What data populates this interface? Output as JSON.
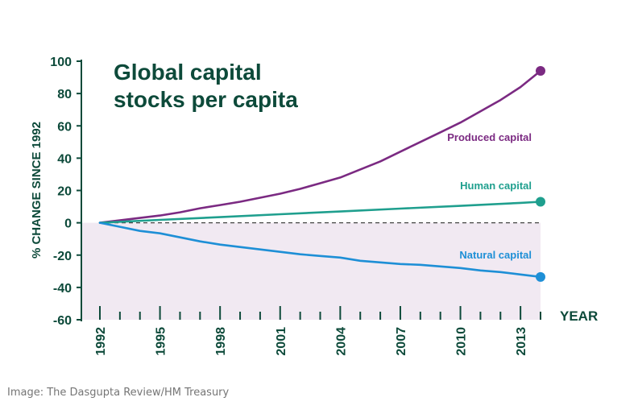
{
  "chart_data": {
    "type": "line",
    "title_lines": [
      "Global capital",
      "stocks per capita"
    ],
    "ylabel": "% CHANGE SINCE 1992",
    "xlabel": "YEAR",
    "xlim": [
      1992,
      2014
    ],
    "ylim": [
      -60,
      100
    ],
    "x_ticks": [
      1992,
      1995,
      1998,
      2001,
      2004,
      2007,
      2010,
      2013
    ],
    "y_ticks": [
      100,
      80,
      60,
      40,
      20,
      0,
      -20,
      -40,
      -60
    ],
    "baseline": 0,
    "grid": false,
    "series": [
      {
        "name": "Produced capital",
        "color": "#7b2a82",
        "x": [
          1992,
          1993,
          1994,
          1995,
          1996,
          1997,
          1998,
          1999,
          2000,
          2001,
          2002,
          2003,
          2004,
          2005,
          2006,
          2007,
          2008,
          2009,
          2010,
          2011,
          2012,
          2013,
          2014
        ],
        "y": [
          0,
          1.5,
          3,
          4.5,
          6.5,
          9,
          11,
          13,
          15.5,
          18,
          21,
          24.5,
          28,
          33,
          38,
          44,
          50,
          56,
          62,
          69,
          76,
          84,
          94
        ]
      },
      {
        "name": "Human capital",
        "color": "#1f9f8e",
        "x": [
          1992,
          1995,
          1998,
          2001,
          2004,
          2007,
          2010,
          2013,
          2014
        ],
        "y": [
          0,
          1.8,
          3.5,
          5.3,
          7,
          8.8,
          10.5,
          12.3,
          13
        ]
      },
      {
        "name": "Natural capital",
        "color": "#1e8fd6",
        "x": [
          1992,
          1993,
          1994,
          1995,
          1996,
          1997,
          1998,
          1999,
          2000,
          2001,
          2002,
          2003,
          2004,
          2005,
          2006,
          2007,
          2008,
          2009,
          2010,
          2011,
          2012,
          2013,
          2014
        ],
        "y": [
          0,
          -2.5,
          -5,
          -6.5,
          -9,
          -11.5,
          -13.5,
          -15,
          -16.5,
          -18,
          -19.5,
          -20.5,
          -21.5,
          -23.5,
          -24.5,
          -25.5,
          -26,
          -27,
          -28,
          -29.5,
          -30.5,
          -32,
          -33.5
        ]
      }
    ]
  },
  "colors": {
    "text": "#0d4a3a",
    "below_zero_fill": "#f1e9f2",
    "zero_line": "#444444"
  },
  "caption": "Image: The Dasgupta Review/HM Treasury"
}
